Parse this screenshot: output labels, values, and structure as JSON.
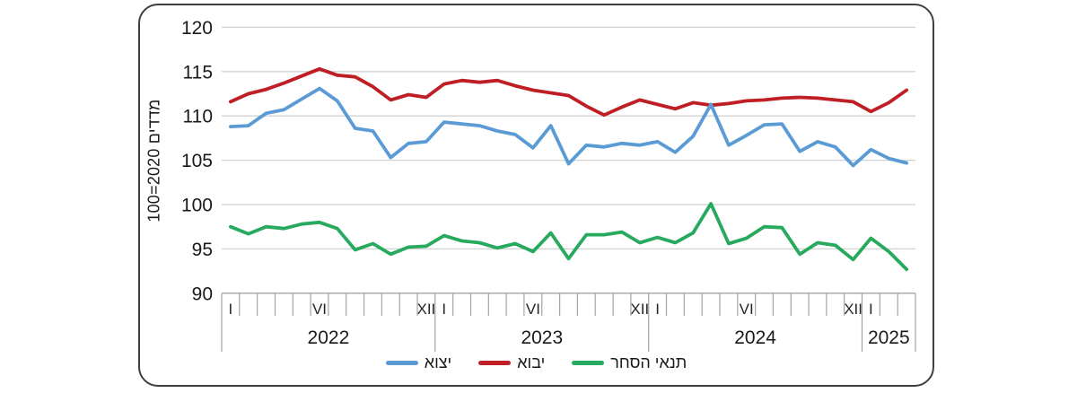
{
  "y_axis": {
    "title": "מדדים 2020=100",
    "ticks": [
      120,
      115,
      110,
      105,
      100,
      95,
      90
    ]
  },
  "x_axis": {
    "years": [
      {
        "label": "2022",
        "months": 12
      },
      {
        "label": "2023",
        "months": 12
      },
      {
        "label": "2024",
        "months": 12
      },
      {
        "label": "2025",
        "months": 3
      }
    ],
    "month_tick_labels": {
      "1": "I",
      "6": "VI",
      "12": "XII"
    }
  },
  "chart_data": {
    "type": "line",
    "title": "",
    "ylabel": "מדדים 2020=100",
    "ylim": [
      90,
      120
    ],
    "y_tick_step": 5,
    "grid": "horizontal",
    "legend_position": "bottom",
    "x": [
      "2022-01",
      "2022-02",
      "2022-03",
      "2022-04",
      "2022-05",
      "2022-06",
      "2022-07",
      "2022-08",
      "2022-09",
      "2022-10",
      "2022-11",
      "2022-12",
      "2023-01",
      "2023-02",
      "2023-03",
      "2023-04",
      "2023-05",
      "2023-06",
      "2023-07",
      "2023-08",
      "2023-09",
      "2023-10",
      "2023-11",
      "2023-12",
      "2024-01",
      "2024-02",
      "2024-03",
      "2024-04",
      "2024-05",
      "2024-06",
      "2024-07",
      "2024-08",
      "2024-09",
      "2024-10",
      "2024-11",
      "2024-12",
      "2025-01",
      "2025-02",
      "2025-03"
    ],
    "series": [
      {
        "id": "export",
        "name": "יצוא",
        "color": "#5B9BD5",
        "values": [
          108.8,
          108.9,
          110.3,
          110.7,
          111.9,
          113.1,
          111.7,
          108.6,
          108.3,
          105.3,
          106.9,
          107.1,
          109.3,
          109.1,
          108.9,
          108.3,
          107.9,
          106.4,
          108.9,
          104.6,
          106.7,
          106.5,
          106.9,
          106.7,
          107.1,
          105.9,
          107.7,
          111.3,
          106.7,
          107.8,
          109.0,
          109.1,
          106.0,
          107.1,
          106.5,
          104.4,
          106.2,
          105.2,
          104.7
        ]
      },
      {
        "id": "import",
        "name": "יבוא",
        "color": "#BE1E24",
        "values": [
          111.6,
          112.5,
          113.0,
          113.7,
          114.5,
          115.3,
          114.6,
          114.4,
          113.3,
          111.8,
          112.4,
          112.1,
          113.6,
          114.0,
          113.8,
          114.0,
          113.4,
          112.9,
          112.6,
          112.3,
          111.1,
          110.1,
          111.0,
          111.8,
          111.3,
          110.8,
          111.5,
          111.2,
          111.4,
          111.7,
          111.8,
          112.0,
          112.1,
          112.0,
          111.8,
          111.6,
          110.5,
          111.5,
          112.9
        ]
      },
      {
        "id": "terms-of-trade",
        "name": "תנאי הסחר",
        "color": "#27A95E",
        "values": [
          97.5,
          96.7,
          97.5,
          97.3,
          97.8,
          98.0,
          97.3,
          94.9,
          95.6,
          94.4,
          95.2,
          95.3,
          96.5,
          95.9,
          95.7,
          95.1,
          95.6,
          94.7,
          96.8,
          93.9,
          96.6,
          96.6,
          96.9,
          95.7,
          96.3,
          95.7,
          96.8,
          100.1,
          95.6,
          96.2,
          97.5,
          97.4,
          94.4,
          95.7,
          95.4,
          93.8,
          96.2,
          94.7,
          92.7
        ]
      }
    ],
    "colors": {
      "grid": "#d2d2d2",
      "axis": "#a3a3a3",
      "label": "#1a1a1a"
    }
  }
}
